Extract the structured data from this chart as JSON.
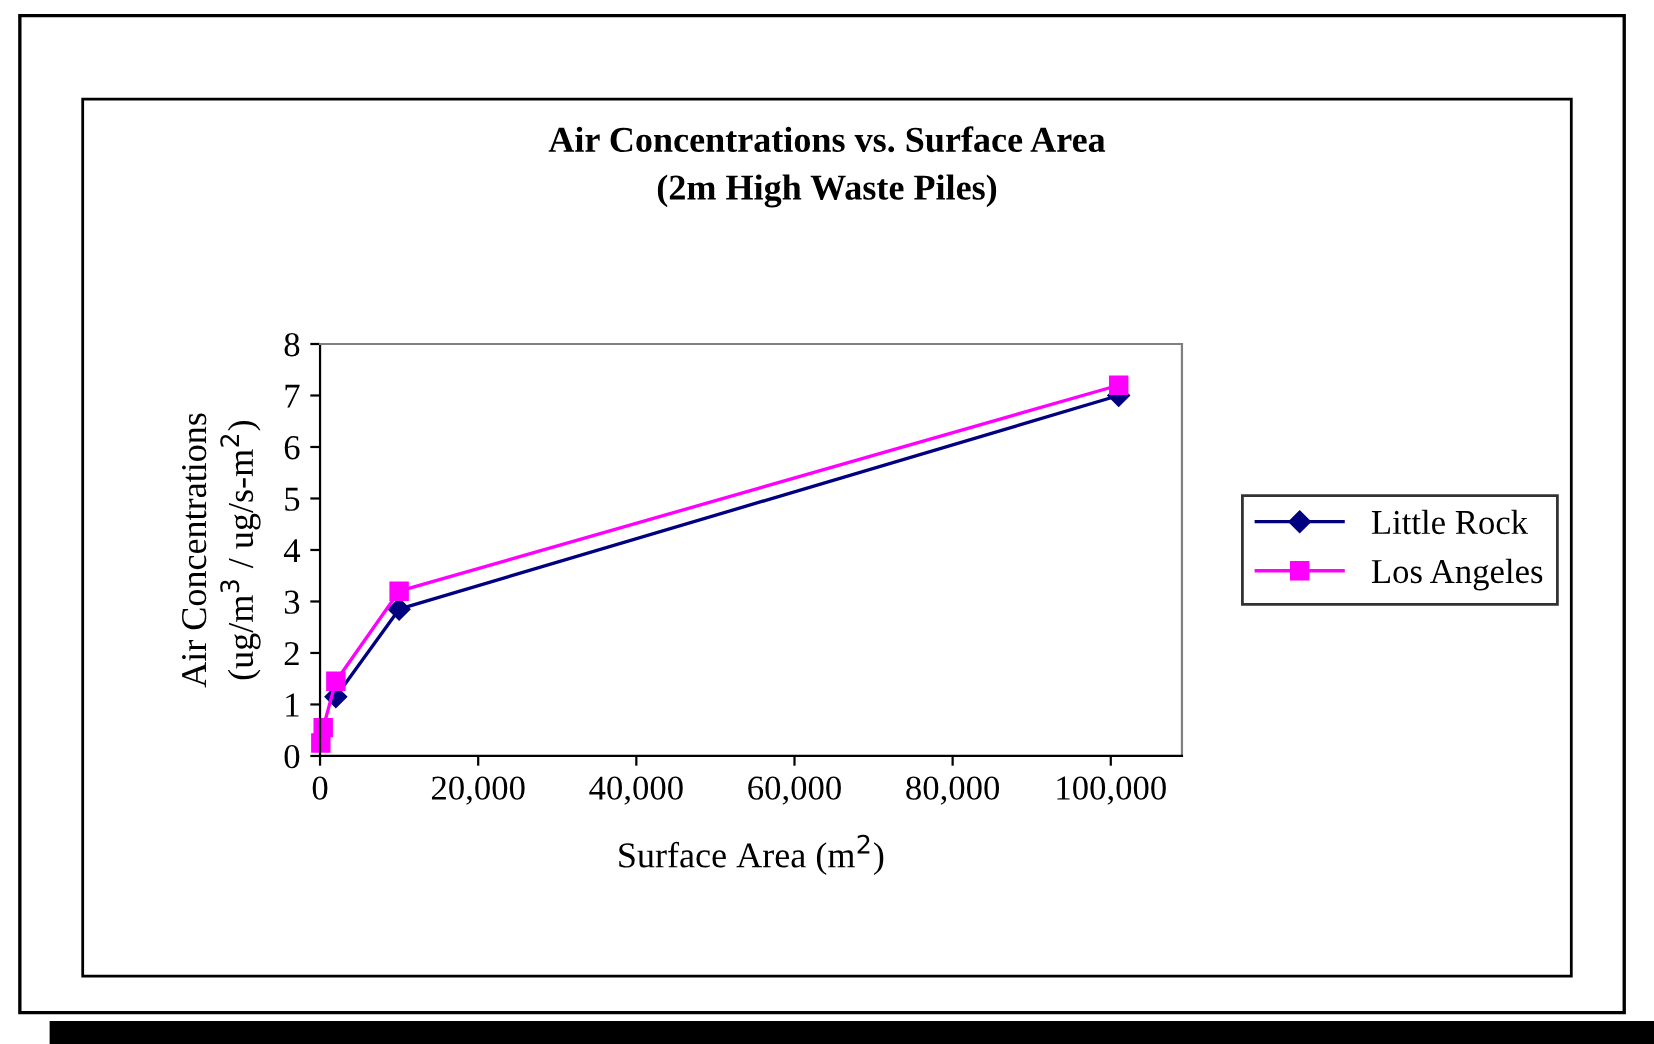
{
  "chart_data": {
    "type": "line",
    "title": "Air Concentrations vs. Surface Area\n(2m High Waste Piles)",
    "xlabel": "Surface Area (m$^{2}$)",
    "ylabel": "Air Concentrations\n(ug/m$^{3}$ / ug/s-m$^{2}$)",
    "xlim": [
      0,
      109000
    ],
    "xticks": [
      {
        "value": 0,
        "label": "0"
      },
      {
        "value": 20000,
        "label": "20,000"
      },
      {
        "value": 40000,
        "label": "40,000"
      },
      {
        "value": 60000,
        "label": "60,000"
      },
      {
        "value": 80000,
        "label": "80,000"
      },
      {
        "value": 100000,
        "label": "100,000"
      }
    ],
    "ylim": [
      0,
      8
    ],
    "yticks": [
      0,
      1,
      2,
      3,
      4,
      5,
      6,
      7,
      8
    ],
    "series": [
      {
        "name": "Little Rock",
        "color": "#000080",
        "marker": "diamond",
        "x": [
          2000,
          10000,
          101000
        ],
        "values": [
          1.15,
          2.85,
          7.0
        ]
      },
      {
        "name": "Los Angeles",
        "color": "#ff00ff",
        "marker": "square",
        "x": [
          100,
          400,
          2000,
          10000,
          101000
        ],
        "values": [
          0.25,
          0.55,
          1.45,
          3.2,
          7.2
        ]
      }
    ],
    "legend": "right",
    "grid": false
  }
}
